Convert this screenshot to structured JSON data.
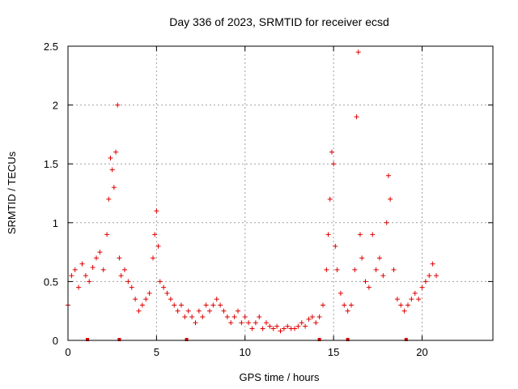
{
  "chart_data": {
    "type": "scatter",
    "title": "Day 336 of 2023, SRMTID for receiver ecsd",
    "xlabel": "GPS time / hours",
    "ylabel": "SRMTID / TECUs",
    "xlim": [
      0,
      24
    ],
    "ylim": [
      0,
      2.5
    ],
    "xticks": [
      0,
      5,
      10,
      15,
      20
    ],
    "yticks": [
      0,
      0.5,
      1,
      1.5,
      2,
      2.5
    ],
    "xtick_labels": [
      "0",
      "5",
      "10",
      "15",
      "20"
    ],
    "ytick_labels": [
      "0",
      "0.5",
      "1",
      "1.5",
      "2",
      "2.5"
    ],
    "grid": true,
    "marker": "+",
    "color": "#e00000",
    "baseline_markers_x": [
      1.1,
      2.9,
      6.7,
      14.2,
      15.8,
      19.1
    ],
    "series": [
      {
        "name": "SRMTID",
        "x": [
          0.0,
          0.2,
          0.4,
          0.6,
          0.8,
          1.0,
          1.2,
          1.4,
          1.6,
          1.8,
          2.0,
          2.2,
          2.3,
          2.4,
          2.5,
          2.6,
          2.7,
          2.8,
          2.9,
          3.0,
          3.2,
          3.4,
          3.6,
          3.8,
          4.0,
          4.2,
          4.4,
          4.6,
          4.8,
          4.9,
          5.0,
          5.1,
          5.2,
          5.4,
          5.6,
          5.8,
          6.0,
          6.2,
          6.4,
          6.6,
          6.8,
          7.0,
          7.2,
          7.4,
          7.6,
          7.8,
          8.0,
          8.2,
          8.4,
          8.6,
          8.8,
          9.0,
          9.2,
          9.4,
          9.6,
          9.8,
          10.0,
          10.2,
          10.4,
          10.6,
          10.8,
          11.0,
          11.2,
          11.4,
          11.6,
          11.8,
          12.0,
          12.2,
          12.4,
          12.6,
          12.8,
          13.0,
          13.2,
          13.4,
          13.6,
          13.8,
          14.0,
          14.2,
          14.4,
          14.6,
          14.7,
          14.8,
          14.9,
          15.0,
          15.1,
          15.2,
          15.4,
          15.6,
          15.8,
          16.0,
          16.2,
          16.3,
          16.4,
          16.5,
          16.6,
          16.8,
          17.0,
          17.2,
          17.4,
          17.6,
          17.8,
          18.0,
          18.1,
          18.2,
          18.4,
          18.6,
          18.8,
          19.0,
          19.2,
          19.4,
          19.6,
          19.8,
          20.0,
          20.2,
          20.4,
          20.6,
          20.8
        ],
        "y": [
          0.3,
          0.55,
          0.6,
          0.45,
          0.65,
          0.55,
          0.5,
          0.62,
          0.7,
          0.75,
          0.6,
          0.9,
          1.2,
          1.55,
          1.45,
          1.3,
          1.6,
          2.0,
          0.7,
          0.55,
          0.6,
          0.5,
          0.45,
          0.35,
          0.25,
          0.3,
          0.35,
          0.4,
          0.7,
          0.9,
          1.1,
          0.8,
          0.5,
          0.45,
          0.4,
          0.35,
          0.3,
          0.25,
          0.3,
          0.2,
          0.25,
          0.2,
          0.15,
          0.25,
          0.2,
          0.3,
          0.25,
          0.3,
          0.35,
          0.3,
          0.25,
          0.2,
          0.15,
          0.2,
          0.25,
          0.15,
          0.2,
          0.15,
          0.1,
          0.15,
          0.2,
          0.1,
          0.15,
          0.12,
          0.1,
          0.12,
          0.08,
          0.1,
          0.12,
          0.1,
          0.1,
          0.12,
          0.15,
          0.12,
          0.18,
          0.2,
          0.15,
          0.2,
          0.3,
          0.6,
          0.9,
          1.2,
          1.6,
          1.5,
          0.8,
          0.6,
          0.4,
          0.3,
          0.25,
          0.3,
          0.6,
          1.9,
          2.45,
          0.9,
          0.7,
          0.5,
          0.45,
          0.9,
          0.6,
          0.7,
          0.55,
          1.0,
          1.4,
          1.2,
          0.6,
          0.35,
          0.3,
          0.25,
          0.3,
          0.35,
          0.4,
          0.35,
          0.45,
          0.5,
          0.55,
          0.65,
          0.55
        ]
      }
    ]
  }
}
